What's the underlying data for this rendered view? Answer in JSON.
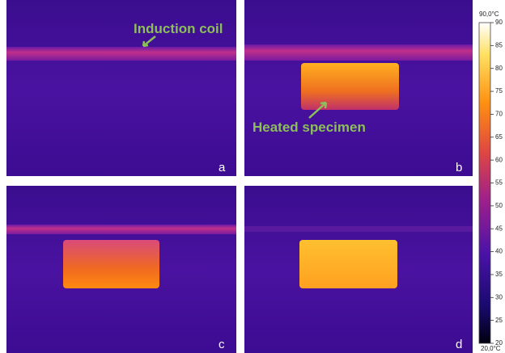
{
  "annotations": {
    "coil": "Induction coil",
    "specimen": "Heated specimen"
  },
  "panels": [
    "a",
    "b",
    "c",
    "d"
  ],
  "colorbar": {
    "max_label": "90,0°C",
    "min_label": "20,0°C",
    "ticks": [
      90,
      85,
      80,
      75,
      70,
      65,
      60,
      55,
      50,
      45,
      40,
      35,
      30,
      25,
      20
    ]
  }
}
